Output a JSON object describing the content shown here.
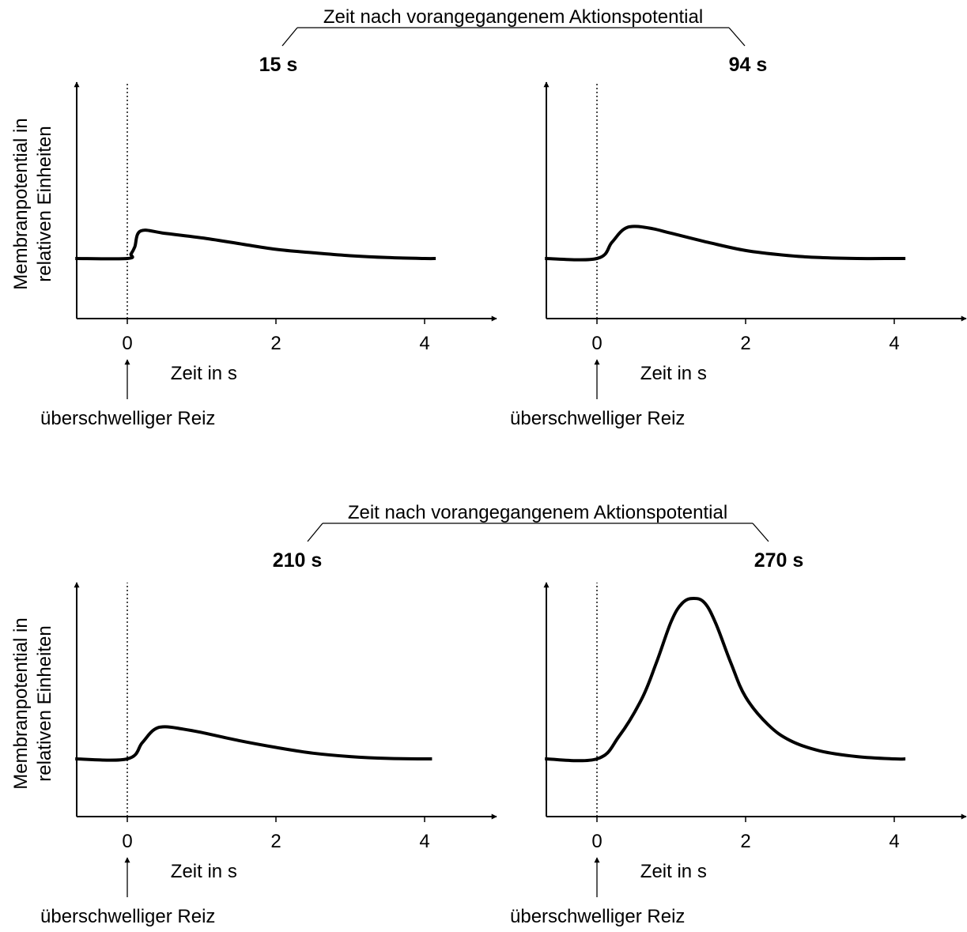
{
  "rows": [
    {
      "header": "Zeit nach vorangegangenem Aktionspotential"
    },
    {
      "header": "Zeit nach vorangegangenem Aktionspotential"
    }
  ],
  "ylabel_lines": [
    "Membranpotential in",
    "relativen Einheiten"
  ],
  "xlabel": "Zeit in s",
  "stimulus_label": "überschwelliger Reiz",
  "colors": {
    "line": "#000000",
    "background": "#ffffff"
  },
  "chart_data": [
    {
      "type": "line",
      "title": "15 s",
      "xlabel": "Zeit in s",
      "ylabel": "Membranpotential in relativen Einheiten",
      "xlim": [
        -0.7,
        5.0
      ],
      "ylim": [
        0,
        10
      ],
      "xticks": [
        0,
        2,
        4
      ],
      "x": [
        -0.7,
        0.0,
        0.05,
        0.1,
        0.18,
        0.5,
        1.0,
        1.5,
        2.0,
        2.5,
        3.0,
        3.5,
        4.0,
        4.15
      ],
      "values": [
        2.6,
        2.6,
        2.8,
        3.1,
        3.8,
        3.7,
        3.5,
        3.25,
        3.0,
        2.85,
        2.72,
        2.64,
        2.6,
        2.6
      ]
    },
    {
      "type": "line",
      "title": "94 s",
      "xlabel": "Zeit in s",
      "ylabel": "Membranpotential in relativen Einheiten",
      "xlim": [
        -0.7,
        5.0
      ],
      "ylim": [
        0,
        10
      ],
      "xticks": [
        0,
        2,
        4
      ],
      "x": [
        -0.7,
        0.0,
        0.2,
        0.35,
        0.5,
        0.75,
        1.0,
        1.5,
        2.0,
        2.5,
        3.0,
        3.5,
        4.0,
        4.15
      ],
      "values": [
        2.6,
        2.6,
        3.3,
        3.85,
        4.0,
        3.9,
        3.7,
        3.3,
        2.95,
        2.75,
        2.64,
        2.6,
        2.6,
        2.6
      ]
    },
    {
      "type": "line",
      "title": "210 s",
      "xlabel": "Zeit in s",
      "ylabel": "Membranpotential in relativen Einheiten",
      "xlim": [
        -0.7,
        5.0
      ],
      "ylim": [
        0,
        10
      ],
      "xticks": [
        0,
        2,
        4
      ],
      "x": [
        -0.7,
        0.0,
        0.2,
        0.35,
        0.5,
        0.75,
        1.0,
        1.5,
        2.0,
        2.5,
        3.0,
        3.5,
        4.0,
        4.1
      ],
      "values": [
        2.6,
        2.6,
        3.3,
        3.85,
        4.0,
        3.9,
        3.75,
        3.4,
        3.1,
        2.85,
        2.7,
        2.62,
        2.6,
        2.6
      ]
    },
    {
      "type": "line",
      "title": "270 s",
      "xlabel": "Zeit in s",
      "ylabel": "Membranpotential in relativen Einheiten",
      "xlim": [
        -0.7,
        5.0
      ],
      "ylim": [
        0,
        10
      ],
      "xticks": [
        0,
        2,
        4
      ],
      "x": [
        -0.7,
        0.0,
        0.3,
        0.6,
        0.8,
        1.0,
        1.15,
        1.3,
        1.45,
        1.6,
        1.8,
        2.0,
        2.3,
        2.6,
        3.0,
        3.5,
        4.0,
        4.15
      ],
      "values": [
        2.6,
        2.6,
        3.6,
        5.2,
        6.8,
        8.6,
        9.4,
        9.6,
        9.4,
        8.5,
        6.8,
        5.3,
        4.1,
        3.4,
        2.95,
        2.7,
        2.6,
        2.6
      ]
    }
  ]
}
